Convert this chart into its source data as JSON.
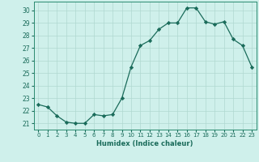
{
  "x": [
    0,
    1,
    2,
    3,
    4,
    5,
    6,
    7,
    8,
    9,
    10,
    11,
    12,
    13,
    14,
    15,
    16,
    17,
    18,
    19,
    20,
    21,
    22,
    23
  ],
  "y": [
    22.5,
    22.3,
    21.6,
    21.1,
    21.0,
    21.0,
    21.7,
    21.6,
    21.7,
    23.0,
    25.5,
    27.2,
    27.6,
    28.5,
    29.0,
    29.0,
    30.2,
    30.2,
    29.1,
    28.9,
    29.1,
    27.7,
    27.2,
    25.5
  ],
  "line_color": "#1a6b5a",
  "marker": "D",
  "marker_size": 2.2,
  "bg_color": "#cff0eb",
  "grid_color": "#b0d8d0",
  "xlabel": "Humidex (Indice chaleur)",
  "ylim": [
    20.5,
    30.7
  ],
  "xlim": [
    -0.5,
    23.5
  ],
  "yticks": [
    21,
    22,
    23,
    24,
    25,
    26,
    27,
    28,
    29,
    30
  ],
  "xticks": [
    0,
    1,
    2,
    3,
    4,
    5,
    6,
    7,
    8,
    9,
    10,
    11,
    12,
    13,
    14,
    15,
    16,
    17,
    18,
    19,
    20,
    21,
    22,
    23
  ],
  "axis_color": "#2a8a70",
  "tick_color": "#1a6b5a",
  "label_color": "#1a6b5a",
  "xlabel_fontsize": 6.0,
  "ytick_fontsize": 5.5,
  "xtick_fontsize": 5.0
}
